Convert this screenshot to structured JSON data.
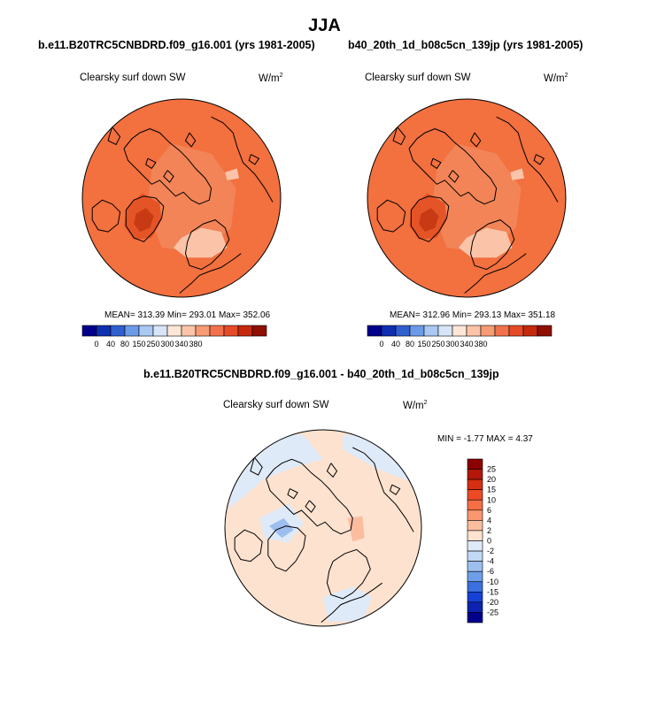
{
  "figure": {
    "title": "JJA",
    "diff_title": "b.e11.B20TRC5CNBDRD.f09_g16.001 - b40_20th_1d_b08c5cn_139jp"
  },
  "chart_data": [
    {
      "type": "heatmap",
      "projection": "north polar stereographic",
      "title": "b.e11.B20TRC5CNBDRD.f09_g16.001 (yrs 1981-2005)",
      "variable": "Clearsky surf down SW",
      "units": "W/m",
      "units_sup": "2",
      "stats": "MEAN= 313.39  Min= 293.01  Max= 352.06",
      "mean": 313.39,
      "min": 293.01,
      "max": 352.06,
      "levels": [
        "0",
        "40",
        "80",
        "150",
        "250",
        "300",
        "340",
        "380"
      ],
      "colors": [
        "#00008b",
        "#0f2fb0",
        "#3060d0",
        "#6b9be8",
        "#a9c8f2",
        "#d6e6f8",
        "#fde6d6",
        "#fbc4a8",
        "#f79b74",
        "#f1714c",
        "#e64b28",
        "#c5290e",
        "#8f0f03"
      ],
      "field": {
        "dominant": "#f3703f",
        "land": "#f28457",
        "greenland": "#e55427",
        "greenland_core": "#c73a13",
        "pale": "#fbc4a8"
      }
    },
    {
      "type": "heatmap",
      "projection": "north polar stereographic",
      "title": "b40_20th_1d_b08c5cn_139jp (yrs 1981-2005)",
      "variable": "Clearsky surf down SW",
      "units": "W/m",
      "units_sup": "2",
      "stats": "MEAN= 312.96  Min= 293.13  Max= 351.18",
      "mean": 312.96,
      "min": 293.13,
      "max": 351.18,
      "levels": [
        "0",
        "40",
        "80",
        "150",
        "250",
        "300",
        "340",
        "380"
      ],
      "colors": [
        "#00008b",
        "#0f2fb0",
        "#3060d0",
        "#6b9be8",
        "#a9c8f2",
        "#d6e6f8",
        "#fde6d6",
        "#fbc4a8",
        "#f79b74",
        "#f1714c",
        "#e64b28",
        "#c5290e",
        "#8f0f03"
      ],
      "field": {
        "dominant": "#f3703f",
        "land": "#f28457",
        "greenland": "#e55427",
        "greenland_core": "#c73a13",
        "pale": "#fbc4a8"
      }
    },
    {
      "type": "heatmap",
      "projection": "north polar stereographic",
      "title": "b.e11.B20TRC5CNBDRD.f09_g16.001 - b40_20th_1d_b08c5cn_139jp",
      "variable": "Clearsky surf down SW",
      "units": "W/m",
      "units_sup": "2",
      "stats": "MIN =  -1.77 MAX =   4.37",
      "min": -1.77,
      "max": 4.37,
      "levels": [
        "25",
        "20",
        "15",
        "10",
        "6",
        "4",
        "2",
        "0",
        "-2",
        "-4",
        "-6",
        "-10",
        "-15",
        "-20",
        "-25"
      ],
      "colors": [
        "#8b0000",
        "#b4170a",
        "#d62e12",
        "#ea4a24",
        "#f56e45",
        "#f99770",
        "#fcbd9f",
        "#fde2cf",
        "#dfeaf8",
        "#c2d8f5",
        "#9dbff0",
        "#6f9ee9",
        "#3b70e0",
        "#1641d6",
        "#0e22b0",
        "#00008b"
      ],
      "field": {
        "dominant": "#fde2cf",
        "neg": "#dfeaf8",
        "neg2": "#9dbff0",
        "pos": "#fcbd9f"
      }
    }
  ]
}
